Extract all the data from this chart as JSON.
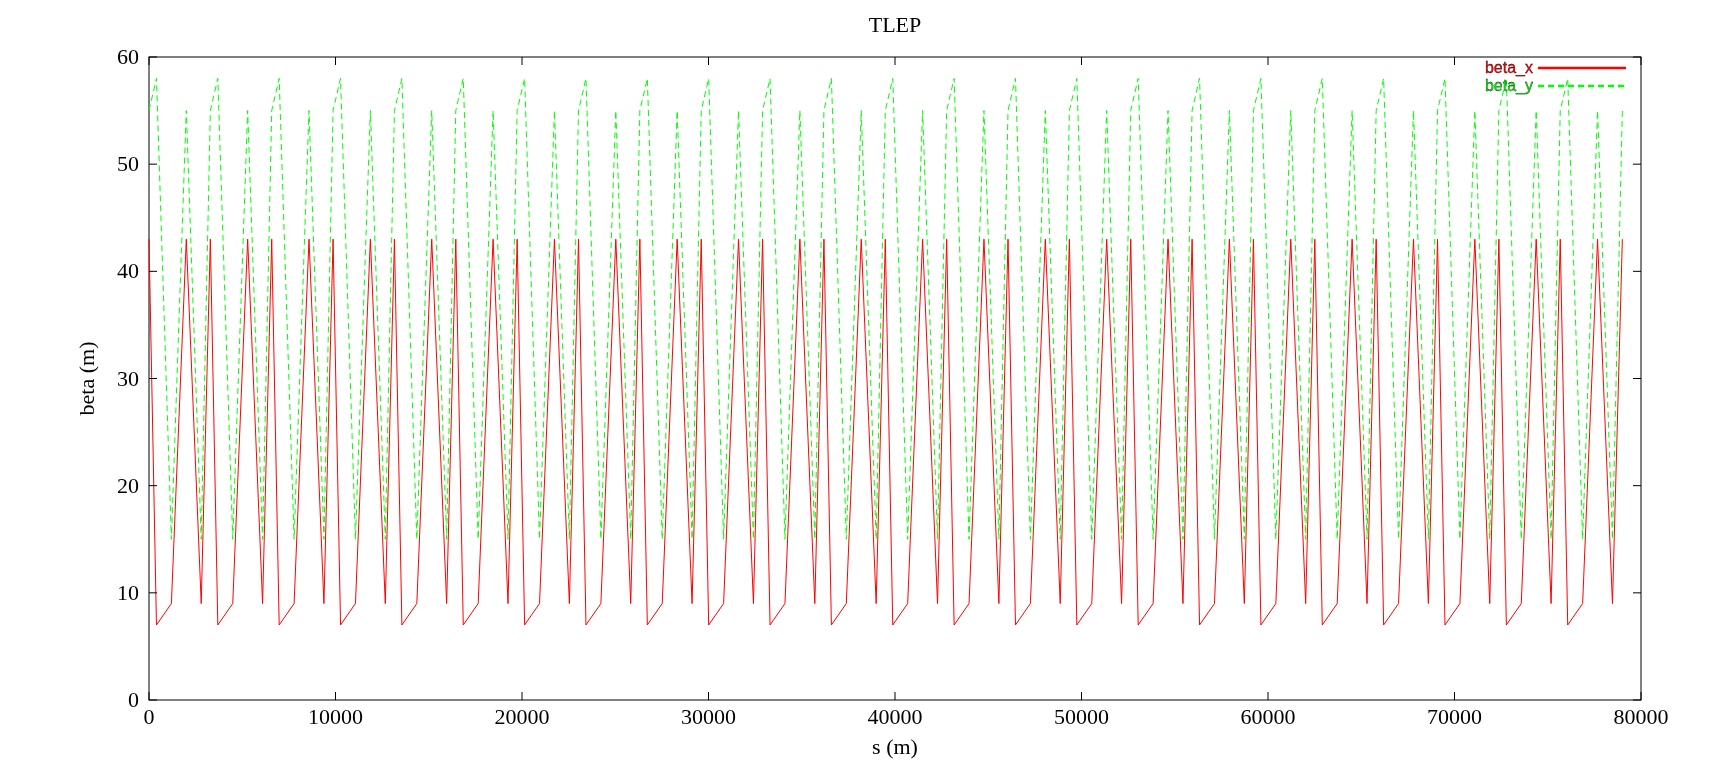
{
  "chart_data": {
    "type": "line",
    "title": "TLEP",
    "xlabel": "s (m)",
    "ylabel": "beta (m)",
    "x": [
      0,
      400,
      1200,
      2000,
      2800,
      3290,
      3690,
      4490,
      5290,
      6090,
      6580,
      6980,
      7780,
      8580,
      9380,
      9870,
      10270,
      11070,
      11870,
      12670,
      13160,
      13560,
      14360,
      15160,
      15960,
      16450,
      16850,
      17650,
      18450,
      19250,
      19740,
      20140,
      20940,
      21740,
      22540,
      23030,
      23430,
      24230,
      25030,
      25830,
      26320,
      26720,
      27520,
      28320,
      29120,
      29610,
      30010,
      30810,
      31610,
      32410,
      32900,
      33300,
      34100,
      34900,
      35700,
      36190,
      36590,
      37390,
      38190,
      38990,
      39480,
      39880,
      40680,
      41480,
      42280,
      42770,
      43170,
      43970,
      44770,
      45570,
      46060,
      46460,
      47260,
      48060,
      48860,
      49350,
      49750,
      50550,
      51350,
      52150,
      52640,
      53040,
      53840,
      54640,
      55440,
      55930,
      56330,
      57130,
      57930,
      58730,
      59220,
      59620,
      60420,
      61220,
      62020,
      62510,
      62910,
      63710,
      64510,
      65310,
      65800,
      66200,
      67000,
      67800,
      68600,
      69090,
      69490,
      70290,
      71090,
      71890,
      72380,
      72780,
      73580,
      74380,
      75180,
      75670,
      76070,
      76870,
      77670,
      78470,
      79000
    ],
    "series": [
      {
        "name": "beta_x",
        "color": "#ff0000",
        "values": [
          43,
          7,
          9,
          43,
          9,
          43,
          7,
          9,
          43,
          9,
          43,
          7,
          9,
          43,
          9,
          43,
          7,
          9,
          43,
          9,
          43,
          7,
          9,
          43,
          9,
          43,
          7,
          9,
          43,
          9,
          43,
          7,
          9,
          43,
          9,
          43,
          7,
          9,
          43,
          9,
          43,
          7,
          9,
          43,
          9,
          43,
          7,
          9,
          43,
          9,
          43,
          7,
          9,
          43,
          9,
          43,
          7,
          9,
          43,
          9,
          43,
          7,
          9,
          43,
          9,
          43,
          7,
          9,
          43,
          9,
          43,
          7,
          9,
          43,
          9,
          43,
          7,
          9,
          43,
          9,
          43,
          7,
          9,
          43,
          9,
          43,
          7,
          9,
          43,
          9,
          43,
          7,
          9,
          43,
          9,
          43,
          7,
          9,
          43,
          9,
          43,
          7,
          9,
          43,
          9,
          43,
          7,
          9,
          43,
          9,
          43,
          7,
          9,
          43,
          9,
          43,
          7,
          9,
          43,
          9,
          43
        ]
      },
      {
        "name": "beta_y",
        "color": "#00ff00",
        "line_style": "dashed",
        "values": [
          55,
          58,
          15,
          55,
          15,
          55,
          58,
          15,
          55,
          15,
          55,
          58,
          15,
          55,
          15,
          55,
          58,
          15,
          55,
          15,
          55,
          58,
          15,
          55,
          15,
          55,
          58,
          15,
          55,
          15,
          55,
          58,
          15,
          55,
          15,
          55,
          58,
          15,
          55,
          15,
          55,
          58,
          15,
          55,
          15,
          55,
          58,
          15,
          55,
          15,
          55,
          58,
          15,
          55,
          15,
          55,
          58,
          15,
          55,
          15,
          55,
          58,
          15,
          55,
          15,
          55,
          58,
          15,
          55,
          15,
          55,
          58,
          15,
          55,
          15,
          55,
          58,
          15,
          55,
          15,
          55,
          58,
          15,
          55,
          15,
          55,
          58,
          15,
          55,
          15,
          55,
          58,
          15,
          55,
          15,
          55,
          58,
          15,
          55,
          15,
          55,
          58,
          15,
          55,
          15,
          55,
          58,
          15,
          55,
          15,
          55,
          58,
          15,
          55,
          15,
          55,
          58,
          15,
          55,
          15,
          55
        ]
      }
    ],
    "xlim": [
      0,
      80000
    ],
    "xticks": [
      0,
      10000,
      20000,
      30000,
      40000,
      50000,
      60000,
      70000,
      80000
    ],
    "ylim": [
      0,
      60
    ],
    "yticks": [
      0,
      10,
      20,
      30,
      40,
      50,
      60
    ],
    "legend": "top right"
  }
}
